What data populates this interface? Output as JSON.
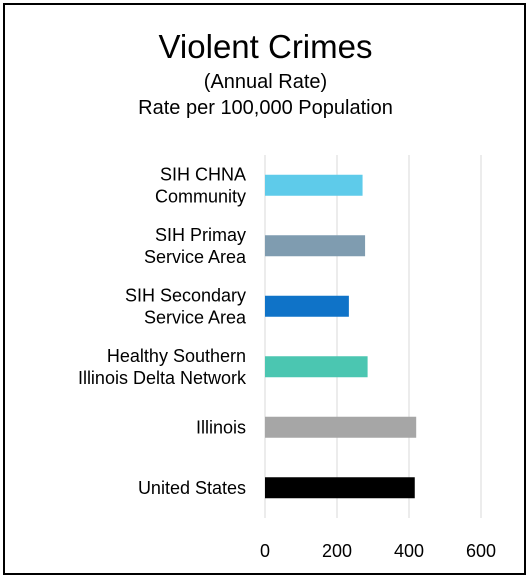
{
  "chart_data": {
    "type": "bar",
    "orientation": "horizontal",
    "title": "Violent Crimes",
    "subtitle_lines": [
      "(Annual Rate)",
      "Rate per 100,000 Population"
    ],
    "categories": [
      [
        "SIH CHNA",
        "Community"
      ],
      [
        "SIH Primay",
        "Service Area"
      ],
      [
        "SIH Secondary",
        "Service Area"
      ],
      [
        "Healthy Southern",
        "Illinois Delta Network"
      ],
      [
        "Illinois"
      ],
      [
        "United States"
      ]
    ],
    "values": [
      271,
      278,
      233,
      285,
      420,
      416
    ],
    "colors": [
      "#5ecbea",
      "#7f9cb0",
      "#0f73c8",
      "#4bc6b1",
      "#a6a6a6",
      "#000000"
    ],
    "xlim": [
      0,
      600
    ],
    "xticks": [
      0,
      200,
      400,
      600
    ],
    "grid": true,
    "xlabel": "",
    "ylabel": ""
  }
}
